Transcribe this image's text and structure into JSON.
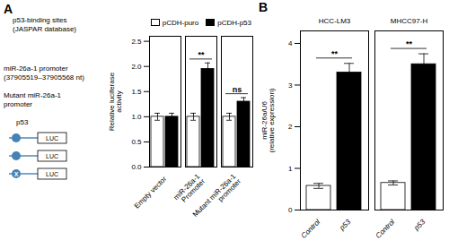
{
  "chart_data": [
    {
      "type": "bar",
      "title": "A",
      "categories": [
        "Empty vector",
        "miR-26a-1\nPromoter",
        "Mutant miR-26a-1\npromoter"
      ],
      "series": [
        {
          "name": "pCDH-puro",
          "color": "white",
          "values": [
            1.0,
            1.0,
            1.0
          ],
          "errors": [
            0.07,
            0.07,
            0.07
          ]
        },
        {
          "name": "pCDH-p53",
          "color": "black",
          "values": [
            1.0,
            1.95,
            1.3
          ],
          "errors": [
            0.07,
            0.12,
            0.08
          ]
        }
      ],
      "ylabel": "Relative luciferase\nactivity",
      "ylim": [
        0,
        2.6
      ],
      "yticks": [
        {
          "value": 0,
          "label": "0.0"
        },
        0.5,
        {
          "value": 1,
          "label": "1.0"
        },
        1.5,
        {
          "value": 2,
          "label": "2.0"
        },
        2.5
      ],
      "legend": "upper right",
      "annotations": [
        {
          "text": "**",
          "category": "miR-26a-1\nPromoter"
        },
        {
          "text": "ns",
          "category": "Mutant miR-26a-1\npromoter"
        }
      ],
      "diagram": {
        "texts": [
          "p53-binding sites\n(JASPAR database)",
          "miR-26a-1 promoter\n(37905519–37905568 nt)",
          "Mutant miR-26a-1\npromoter"
        ],
        "label": "p53",
        "constructs": [
          {
            "text": "LUC"
          },
          {
            "text": "LUC"
          },
          {
            "text": "LUC",
            "mark": "X"
          }
        ]
      }
    },
    {
      "type": "bar",
      "title": "B",
      "categories": [
        "Control",
        "p53",
        "Control",
        "p53"
      ],
      "groups": [
        "HCC-LM3",
        "HCC-LM3",
        "MHCC97-H",
        "MHCC97-H"
      ],
      "values": [
        0.58,
        3.3,
        0.65,
        3.5
      ],
      "errors": [
        0.06,
        0.22,
        0.05,
        0.25
      ],
      "colors": [
        "white",
        "black",
        "white",
        "black"
      ],
      "ylabel": "miR-26a/U6\n(relative expression)",
      "ylim": [
        0,
        4.3
      ],
      "yticks": [
        0,
        1,
        2,
        3,
        4
      ],
      "annotations": [
        {
          "text": "**",
          "group": "HCC-LM3"
        },
        {
          "text": "**",
          "group": "MHCC97-H"
        }
      ]
    }
  ]
}
